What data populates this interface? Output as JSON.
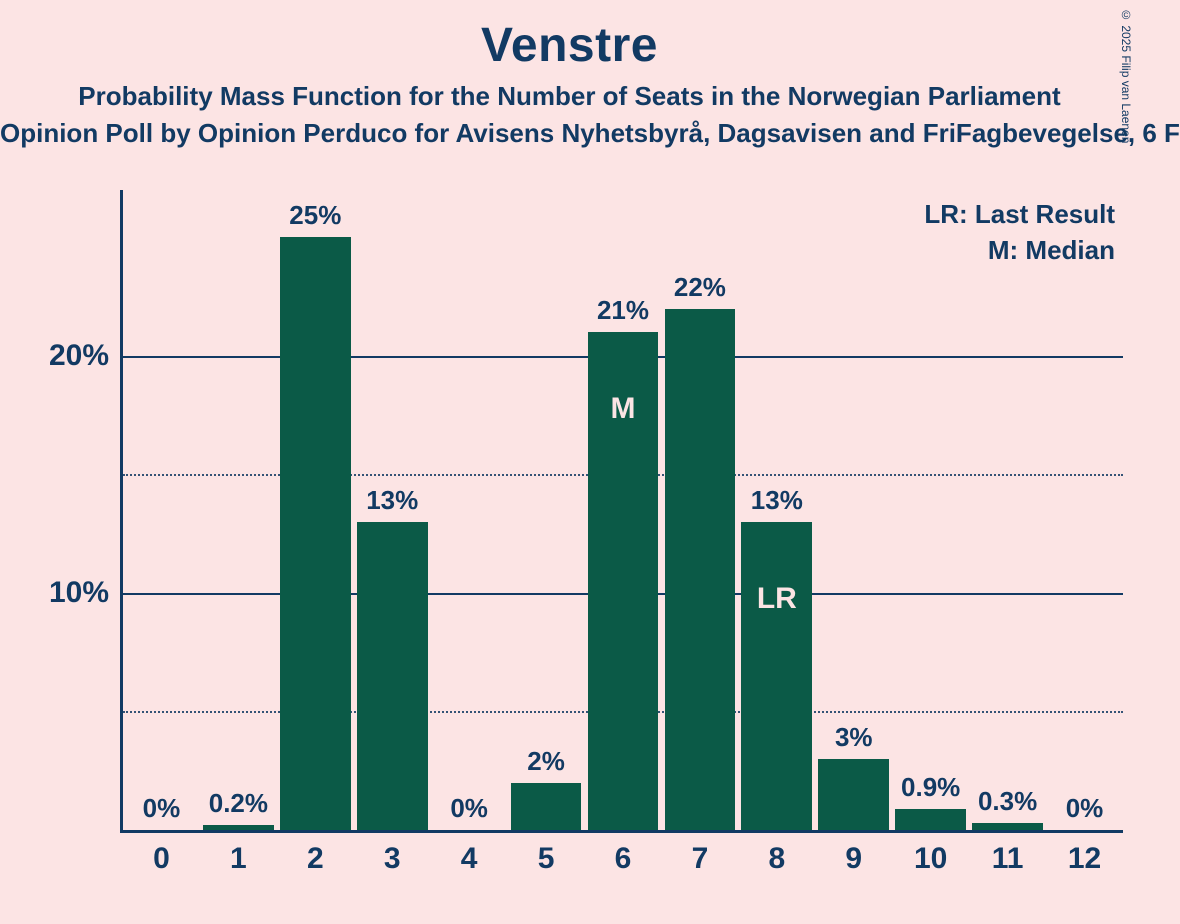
{
  "title": "Venstre",
  "subtitle1": "Probability Mass Function for the Number of Seats in the Norwegian Parliament",
  "subtitle2": "Opinion Poll by Opinion Perduco for Avisens Nyhetsbyrå, Dagsavisen and FriFagbevegelse, 6 F",
  "copyright": "© 2025 Filip van Laenen",
  "legend": {
    "lr": "LR: Last Result",
    "m": "M: Median"
  },
  "chart": {
    "type": "bar",
    "background_color": "#fce4e4",
    "axis_color": "#123a63",
    "text_color": "#123a63",
    "bar_color": "#0b5a47",
    "bar_width_ratio": 0.92,
    "title_fontsize": 48,
    "subtitle_fontsize": 26,
    "tick_fontsize": 30,
    "barlabel_fontsize": 26,
    "ylim_max": 27,
    "y_major_ticks": [
      10,
      20
    ],
    "y_minor_ticks": [
      5,
      15
    ],
    "y_major_labels": [
      "10%",
      "20%"
    ],
    "categories": [
      "0",
      "1",
      "2",
      "3",
      "4",
      "5",
      "6",
      "7",
      "8",
      "9",
      "10",
      "11",
      "12"
    ],
    "values": [
      0,
      0.2,
      25,
      13,
      0,
      2,
      21,
      22,
      13,
      3,
      0.9,
      0.3,
      0
    ],
    "value_labels": [
      "0%",
      "0.2%",
      "25%",
      "13%",
      "0%",
      "2%",
      "21%",
      "22%",
      "13%",
      "3%",
      "0.9%",
      "0.3%",
      "0%"
    ],
    "annotation_M_index": 6,
    "annotation_M_text": "M",
    "annotation_LR_index": 8,
    "annotation_LR_text": "LR"
  }
}
